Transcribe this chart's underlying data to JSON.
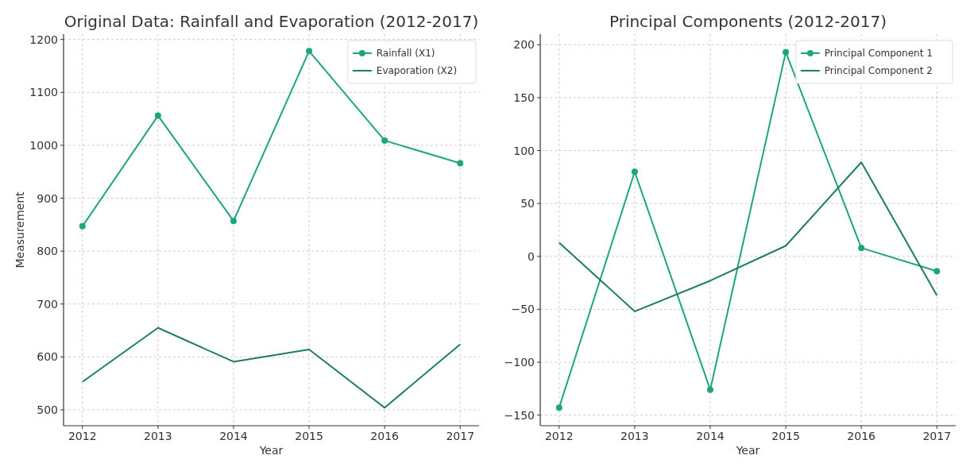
{
  "chart_data": [
    {
      "type": "line",
      "title": "Original Data: Rainfall and Evaporation (2012-2017)",
      "xlabel": "Year",
      "ylabel": "Measurement",
      "x": [
        2012,
        2013,
        2014,
        2015,
        2016,
        2017
      ],
      "xlim": [
        2011.75,
        2017.25
      ],
      "xticks": [
        2012,
        2013,
        2014,
        2015,
        2016,
        2017
      ],
      "ylim": [
        470,
        1210
      ],
      "yticks": [
        500,
        600,
        700,
        800,
        900,
        1000,
        1100,
        1200
      ],
      "grid": true,
      "legend": "top right",
      "series": [
        {
          "name": "Rainfall (X1)",
          "color": "#1ca57f",
          "marker": "circle",
          "values": [
            847,
            1056,
            857,
            1178,
            1009,
            966
          ]
        },
        {
          "name": "Evaporation (X2)",
          "color": "#1e7d5e",
          "marker": "none",
          "values": [
            553,
            655,
            591,
            614,
            504,
            624
          ]
        }
      ]
    },
    {
      "type": "line",
      "title": "Principal Components (2012-2017)",
      "xlabel": "Year",
      "x": [
        2012,
        2013,
        2014,
        2015,
        2016,
        2017
      ],
      "xlim": [
        2011.75,
        2017.25
      ],
      "xticks": [
        2012,
        2013,
        2014,
        2015,
        2016,
        2017
      ],
      "ylim": [
        -160,
        210
      ],
      "yticks": [
        {
          "value": -150,
          "label": "−150"
        },
        {
          "value": -100,
          "label": "−100"
        },
        {
          "value": -50,
          "label": "−50"
        },
        0,
        50,
        100,
        150,
        200
      ],
      "grid": true,
      "legend": "top right",
      "series": [
        {
          "name": "Principal Component 1",
          "color": "#1ca57f",
          "marker": "circle",
          "values": [
            -143,
            80,
            -126,
            193,
            8,
            -14
          ]
        },
        {
          "name": "Principal Component 2",
          "color": "#1e7d5e",
          "marker": "none",
          "values": [
            13,
            -52,
            -23,
            10,
            89,
            -37
          ]
        }
      ]
    }
  ]
}
